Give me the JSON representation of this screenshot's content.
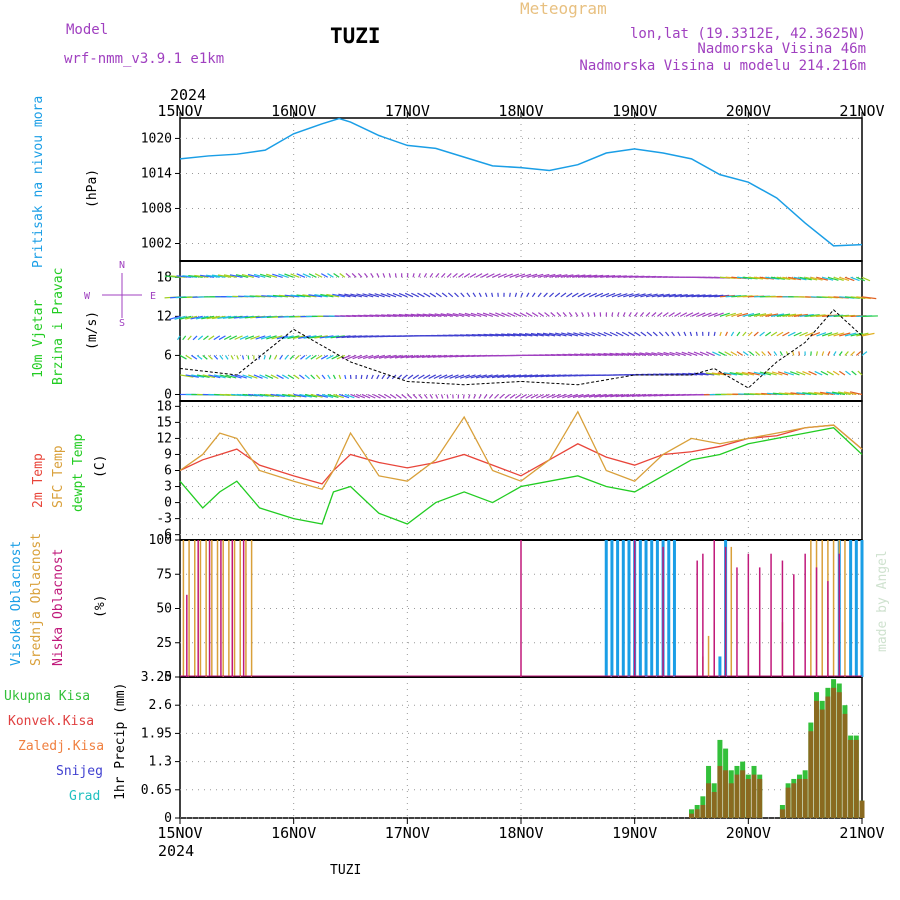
{
  "header": {
    "model_label": "Model",
    "model_name": "wrf-nmm_v3.9.1 e1km",
    "station": "TUZI",
    "chart_kind": "Meteogram",
    "lonlat": "lon,lat (19.3312E, 42.3625N)",
    "elevation": "Nadmorska Visina 46m",
    "model_elevation": "Nadmorska Visina u modelu 214.216m"
  },
  "footer": {
    "station": "TUZI"
  },
  "credit": "made by Angel",
  "colors": {
    "pressure": "#1a9ee6",
    "temp2m": "#e8453a",
    "sfc": "#d9a03a",
    "dewpt": "#22cc22",
    "high_cloud": "#1a9ee6",
    "mid_cloud": "#d9a03a",
    "low_cloud": "#c0187a",
    "precip_total": "#33c03a",
    "precip_conv": "#e04040",
    "precip_grid": "#d9a03a",
    "snow": "#4040d0",
    "grad": "#20c0c0",
    "wind_dir_legend": "#a040c0",
    "wind_speed_line": "#000000",
    "gust_marker": "#e83030"
  },
  "chart_data": [
    {
      "type": "line",
      "panel": "pressure",
      "ylabel_name": "Pritisak na nivou mora",
      "ylabel_unit": "(hPa)",
      "year": "2024",
      "x_ticks": [
        "15NOV",
        "16NOV",
        "17NOV",
        "18NOV",
        "19NOV",
        "20NOV",
        "21NOV"
      ],
      "y_ticks": [
        1002,
        1008,
        1014,
        1020
      ],
      "ylim": [
        999,
        1023.5
      ],
      "grid": true,
      "x_days": [
        0,
        0.25,
        0.5,
        0.75,
        1,
        1.25,
        1.4,
        1.5,
        1.75,
        2,
        2.25,
        2.5,
        2.75,
        3,
        3.25,
        3.5,
        3.75,
        4,
        4.25,
        4.5,
        4.75,
        5,
        5.25,
        5.5,
        5.75,
        6
      ],
      "series": [
        {
          "values": [
            1016.5,
            1017.0,
            1017.3,
            1018.0,
            1020.8,
            1022.5,
            1023.4,
            1022.8,
            1020.5,
            1018.8,
            1018.3,
            1016.8,
            1015.3,
            1015.0,
            1014.5,
            1015.5,
            1017.5,
            1018.2,
            1017.5,
            1016.5,
            1013.8,
            1012.5,
            1009.8,
            1005.5,
            1001.6,
            1001.8
          ]
        }
      ]
    },
    {
      "type": "barb",
      "panel": "wind",
      "ylabel_name": "10m Vjetar",
      "ylabel_sub": "Brzina i Pravac",
      "ylabel_unit": "(m/s)",
      "direction_legend": {
        "north": "N",
        "south": "S",
        "west": "W",
        "east": "E"
      },
      "y_ticks": [
        0,
        6,
        12,
        18
      ],
      "ylim": [
        -1,
        20.5
      ],
      "grid": true,
      "x_days": [
        0,
        0.5,
        1,
        1.5,
        2,
        2.5,
        3,
        3.5,
        4,
        4.5,
        4.7,
        5,
        5.25,
        5.5,
        5.75,
        6
      ],
      "series": [
        {
          "name": "speed",
          "values": [
            4,
            3,
            10,
            5,
            2,
            1.5,
            2,
            1.5,
            3,
            3,
            4,
            1,
            5,
            8,
            13,
            9
          ]
        }
      ]
    },
    {
      "type": "line",
      "panel": "temperature",
      "ylabel_names": [
        "2m Temp",
        "SFC Temp",
        "dewpt Temp"
      ],
      "ylabel_unit": "(C)",
      "y_ticks": [
        -6,
        -3,
        0,
        3,
        6,
        9,
        12,
        15,
        18
      ],
      "ylim": [
        -7,
        19
      ],
      "grid": true,
      "x_days": [
        0,
        0.2,
        0.35,
        0.5,
        0.7,
        1,
        1.25,
        1.35,
        1.5,
        1.75,
        2,
        2.25,
        2.5,
        2.75,
        3,
        3.25,
        3.5,
        3.75,
        4,
        4.25,
        4.5,
        4.75,
        5,
        5.25,
        5.5,
        5.75,
        6
      ],
      "series": [
        {
          "name": "2m Temp",
          "values": [
            6,
            8,
            9,
            10,
            7,
            5,
            3.5,
            6,
            9,
            7.5,
            6.5,
            7.5,
            9,
            7,
            5,
            8,
            11,
            8.5,
            7,
            9,
            9.5,
            10.5,
            12,
            12.5,
            14,
            14.5,
            10
          ]
        },
        {
          "name": "SFC Temp",
          "values": [
            6,
            9,
            13,
            12,
            6,
            4,
            2.5,
            6,
            13,
            5,
            4,
            8,
            16,
            6,
            4,
            8,
            17,
            6,
            4,
            9,
            12,
            11,
            12,
            13,
            14,
            14.5,
            10
          ]
        },
        {
          "name": "dewpt Temp",
          "values": [
            4,
            -1,
            2,
            4,
            -1,
            -3,
            -4,
            2,
            3,
            -2,
            -4,
            0,
            2,
            0,
            3,
            4,
            5,
            3,
            2,
            5,
            8,
            9,
            11,
            12,
            13,
            14,
            9
          ]
        }
      ]
    },
    {
      "type": "bar",
      "panel": "clouds",
      "ylabel_names": [
        "Visoka Oblacnost",
        "Srednja Oblacnost",
        "Niska Oblacnost"
      ],
      "ylabel_unit": "(%)",
      "y_ticks": [
        0,
        25,
        50,
        75,
        100
      ],
      "ylim": [
        0,
        100
      ],
      "grid": true,
      "series": [
        {
          "name": "high",
          "x_days": [
            3.75,
            3.8,
            3.85,
            3.9,
            3.95,
            4.0,
            4.05,
            4.1,
            4.15,
            4.2,
            4.25,
            4.3,
            4.35,
            4.75,
            4.8,
            5.8,
            5.9,
            5.95,
            6.0
          ],
          "values": [
            100,
            100,
            100,
            100,
            100,
            100,
            100,
            100,
            100,
            100,
            100,
            100,
            100,
            15,
            100,
            100,
            100,
            100,
            100
          ]
        },
        {
          "name": "middle",
          "x_days": [
            0.03,
            0.08,
            0.13,
            0.18,
            0.23,
            0.28,
            0.33,
            0.38,
            0.43,
            0.48,
            0.53,
            0.58,
            0.63,
            4.6,
            4.65,
            4.7,
            4.85,
            5.0,
            5.3,
            5.55,
            5.6,
            5.65,
            5.7,
            5.75,
            5.8,
            5.85
          ],
          "values": [
            100,
            100,
            100,
            100,
            100,
            100,
            100,
            100,
            100,
            100,
            100,
            100,
            100,
            15,
            30,
            40,
            95,
            25,
            40,
            100,
            100,
            100,
            100,
            100,
            100,
            100
          ]
        },
        {
          "name": "low",
          "x_days": [
            0.06,
            0.16,
            0.26,
            0.36,
            0.46,
            0.56,
            3.0,
            4.0,
            4.25,
            4.55,
            4.6,
            4.7,
            4.8,
            4.9,
            5.0,
            5.1,
            5.2,
            5.3,
            5.4,
            5.5,
            5.6,
            5.7,
            5.8
          ],
          "values": [
            60,
            100,
            100,
            100,
            100,
            100,
            100,
            100,
            95,
            85,
            90,
            100,
            95,
            80,
            90,
            80,
            90,
            85,
            75,
            90,
            80,
            70,
            90
          ]
        }
      ]
    },
    {
      "type": "bar",
      "panel": "precipitation",
      "ylabel_unit": "1hr Precip (mm)",
      "legend": [
        "Ukupna Kisa",
        "Konvek.Kisa",
        "Zaledj.Kisa",
        "Snijeg",
        "Grad"
      ],
      "y_ticks": [
        0,
        0.65,
        1.3,
        1.95,
        2.6,
        3.25
      ],
      "ylim": [
        0,
        3.25
      ],
      "grid": true,
      "x_days": [
        4.5,
        4.55,
        4.6,
        4.65,
        4.7,
        4.75,
        4.8,
        4.85,
        4.9,
        4.95,
        5.0,
        5.05,
        5.1,
        5.3,
        5.35,
        5.4,
        5.45,
        5.5,
        5.55,
        5.6,
        5.65,
        5.7,
        5.75,
        5.8,
        5.85,
        5.9,
        5.95,
        6.0
      ],
      "series": [
        {
          "name": "Ukupna Kisa",
          "values": [
            0.2,
            0.3,
            0.5,
            1.2,
            0.8,
            1.8,
            1.6,
            1.1,
            1.2,
            1.3,
            1.0,
            1.2,
            1.0,
            0.3,
            0.8,
            0.9,
            1.0,
            1.1,
            2.2,
            2.9,
            2.7,
            3.0,
            3.2,
            3.1,
            2.6,
            1.9,
            1.9,
            0.4
          ]
        },
        {
          "name": "Konvek.Kisa",
          "values": [
            0.1,
            0.2,
            0.3,
            0.8,
            0.6,
            1.2,
            1.1,
            0.8,
            1.0,
            1.1,
            0.9,
            1.0,
            0.9,
            0.2,
            0.7,
            0.8,
            0.9,
            0.9,
            2.0,
            2.7,
            2.5,
            2.8,
            3.0,
            2.9,
            2.4,
            1.8,
            1.8,
            0.4
          ]
        }
      ]
    }
  ]
}
